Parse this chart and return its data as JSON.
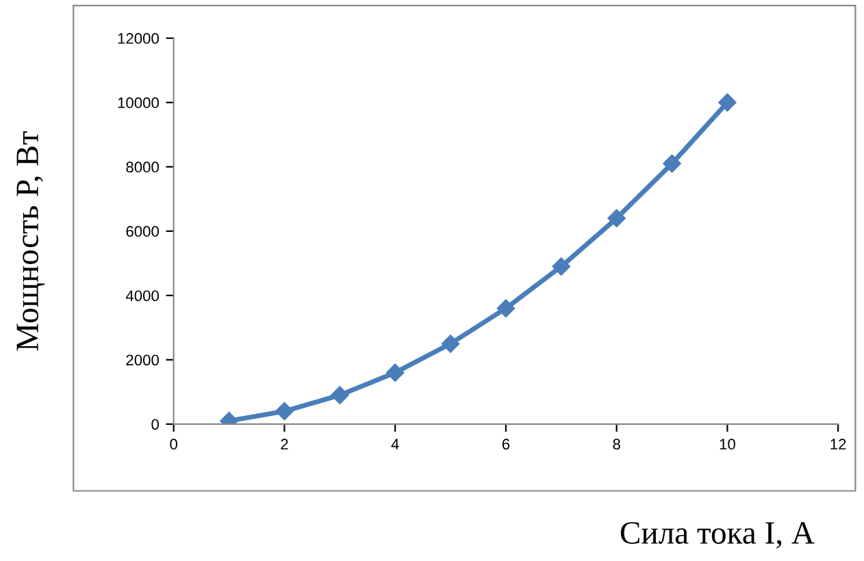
{
  "chart_data": {
    "type": "line",
    "xlabel": "Сила тока I, А",
    "ylabel": "Мощность P, Вт",
    "x": [
      1,
      2,
      3,
      4,
      5,
      6,
      7,
      8,
      9,
      10
    ],
    "series": [
      {
        "color": "#4a7ebb",
        "values": [
          100,
          400,
          900,
          1600,
          2500,
          3600,
          4900,
          6400,
          8100,
          10000
        ]
      }
    ],
    "xlim": [
      0,
      12
    ],
    "xticks": [
      0,
      2,
      4,
      6,
      8,
      10,
      12
    ],
    "ylim": [
      0,
      12000
    ],
    "yticks": [
      0,
      2000,
      4000,
      6000,
      8000,
      10000,
      12000
    ],
    "grid": false,
    "legend": false,
    "marker": "diamond",
    "line_style": "solid"
  }
}
